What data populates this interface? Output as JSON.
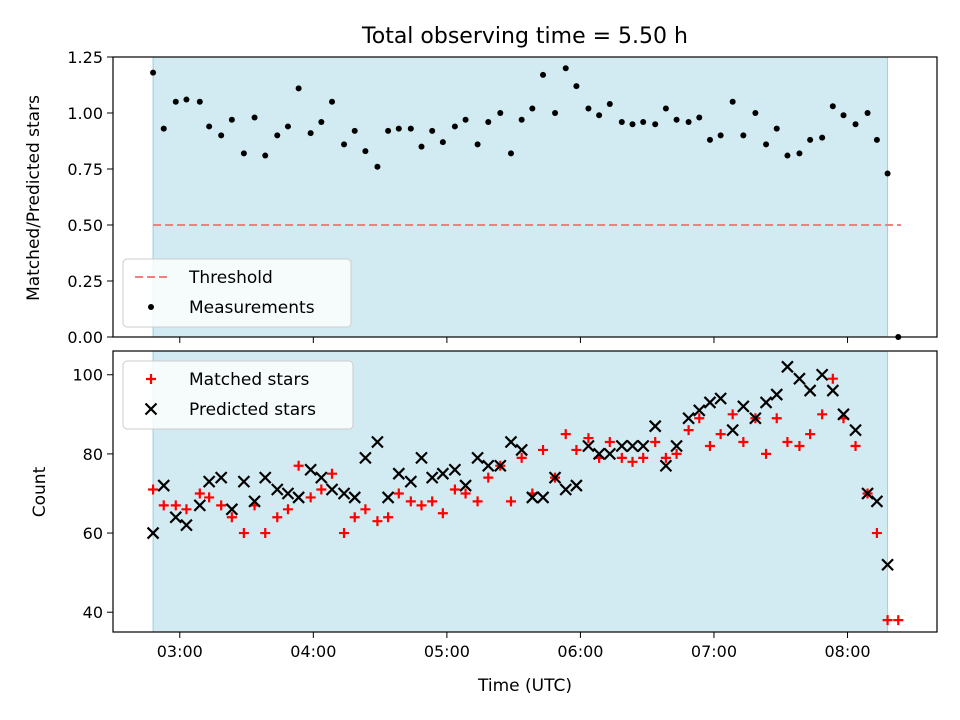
{
  "chart_data": [
    {
      "type": "scatter",
      "title": "Total observing time = 5.50 h",
      "xlabel": "",
      "ylabel": "Matched/Predicted stars",
      "ylim": [
        0,
        1.25
      ],
      "yticks": [
        "0.00",
        "0.25",
        "0.50",
        "0.75",
        "1.00",
        "1.25"
      ],
      "xlim": [
        2.5,
        8.67
      ],
      "xticks_hours": [
        3,
        4,
        5,
        6,
        7,
        8
      ],
      "shaded_span": [
        2.8,
        8.3
      ],
      "shade_color": "#add8e6",
      "legend": {
        "position": "lower-left",
        "entries": [
          {
            "label": "Threshold",
            "style": "dashed-line",
            "color": "#f08080"
          },
          {
            "label": "Measurements",
            "style": "dot",
            "color": "#000000"
          }
        ]
      },
      "threshold": {
        "name": "Threshold",
        "y": 0.5,
        "x": [
          2.8,
          8.4
        ],
        "color": "#f08080"
      },
      "series": [
        {
          "name": "Measurements",
          "color": "#000000",
          "points": [
            [
              2.8,
              1.18
            ],
            [
              2.88,
              0.93
            ],
            [
              2.97,
              1.05
            ],
            [
              3.05,
              1.06
            ],
            [
              3.15,
              1.05
            ],
            [
              3.22,
              0.94
            ],
            [
              3.31,
              0.9
            ],
            [
              3.39,
              0.97
            ],
            [
              3.48,
              0.82
            ],
            [
              3.56,
              0.98
            ],
            [
              3.64,
              0.81
            ],
            [
              3.73,
              0.9
            ],
            [
              3.81,
              0.94
            ],
            [
              3.89,
              1.11
            ],
            [
              3.98,
              0.91
            ],
            [
              4.06,
              0.96
            ],
            [
              4.14,
              1.05
            ],
            [
              4.23,
              0.86
            ],
            [
              4.31,
              0.92
            ],
            [
              4.39,
              0.83
            ],
            [
              4.48,
              0.76
            ],
            [
              4.56,
              0.92
            ],
            [
              4.64,
              0.93
            ],
            [
              4.73,
              0.93
            ],
            [
              4.81,
              0.85
            ],
            [
              4.89,
              0.92
            ],
            [
              4.97,
              0.87
            ],
            [
              5.06,
              0.94
            ],
            [
              5.14,
              0.97
            ],
            [
              5.23,
              0.86
            ],
            [
              5.31,
              0.96
            ],
            [
              5.4,
              1.0
            ],
            [
              5.48,
              0.82
            ],
            [
              5.56,
              0.97
            ],
            [
              5.64,
              1.02
            ],
            [
              5.72,
              1.17
            ],
            [
              5.81,
              1.0
            ],
            [
              5.89,
              1.2
            ],
            [
              5.97,
              1.12
            ],
            [
              6.06,
              1.02
            ],
            [
              6.14,
              0.99
            ],
            [
              6.22,
              1.04
            ],
            [
              6.31,
              0.96
            ],
            [
              6.39,
              0.95
            ],
            [
              6.47,
              0.96
            ],
            [
              6.56,
              0.95
            ],
            [
              6.64,
              1.02
            ],
            [
              6.72,
              0.97
            ],
            [
              6.81,
              0.96
            ],
            [
              6.89,
              0.98
            ],
            [
              6.97,
              0.88
            ],
            [
              7.05,
              0.9
            ],
            [
              7.14,
              1.05
            ],
            [
              7.22,
              0.9
            ],
            [
              7.31,
              1.0
            ],
            [
              7.39,
              0.86
            ],
            [
              7.47,
              0.93
            ],
            [
              7.55,
              0.81
            ],
            [
              7.64,
              0.82
            ],
            [
              7.72,
              0.88
            ],
            [
              7.81,
              0.89
            ],
            [
              7.89,
              1.03
            ],
            [
              7.97,
              0.99
            ],
            [
              8.06,
              0.95
            ],
            [
              8.15,
              1.0
            ],
            [
              8.22,
              0.88
            ],
            [
              8.3,
              0.73
            ],
            [
              8.38,
              0.0
            ]
          ]
        }
      ]
    },
    {
      "type": "scatter",
      "title": "",
      "xlabel": "Time (UTC)",
      "ylabel": "Count",
      "ylim": [
        35,
        106
      ],
      "yticks": [
        "40",
        "60",
        "80",
        "100"
      ],
      "xlim": [
        2.5,
        8.67
      ],
      "xticks_hours": [
        3,
        4,
        5,
        6,
        7,
        8
      ],
      "xtick_labels": [
        "03:00",
        "04:00",
        "05:00",
        "06:00",
        "07:00",
        "08:00"
      ],
      "shaded_span": [
        2.8,
        8.3
      ],
      "shade_color": "#add8e6",
      "legend": {
        "position": "upper-left",
        "entries": [
          {
            "label": "Matched stars",
            "style": "plus",
            "color": "#ff0000"
          },
          {
            "label": "Predicted stars",
            "style": "cross",
            "color": "#000000"
          }
        ]
      },
      "series": [
        {
          "name": "Matched stars",
          "marker": "plus",
          "color": "#ff0000",
          "points": [
            [
              2.8,
              71
            ],
            [
              2.88,
              67
            ],
            [
              2.97,
              67
            ],
            [
              3.05,
              66
            ],
            [
              3.15,
              70
            ],
            [
              3.22,
              69
            ],
            [
              3.31,
              67
            ],
            [
              3.39,
              64
            ],
            [
              3.48,
              60
            ],
            [
              3.56,
              67
            ],
            [
              3.64,
              60
            ],
            [
              3.73,
              64
            ],
            [
              3.81,
              66
            ],
            [
              3.89,
              77
            ],
            [
              3.98,
              69
            ],
            [
              4.06,
              71
            ],
            [
              4.14,
              75
            ],
            [
              4.23,
              60
            ],
            [
              4.31,
              64
            ],
            [
              4.39,
              66
            ],
            [
              4.48,
              63
            ],
            [
              4.56,
              64
            ],
            [
              4.64,
              70
            ],
            [
              4.73,
              68
            ],
            [
              4.81,
              67
            ],
            [
              4.89,
              68
            ],
            [
              4.97,
              65
            ],
            [
              5.06,
              71
            ],
            [
              5.14,
              70
            ],
            [
              5.23,
              68
            ],
            [
              5.31,
              74
            ],
            [
              5.4,
              77
            ],
            [
              5.48,
              68
            ],
            [
              5.56,
              79
            ],
            [
              5.64,
              70
            ],
            [
              5.72,
              81
            ],
            [
              5.81,
              74
            ],
            [
              5.89,
              85
            ],
            [
              5.97,
              81
            ],
            [
              6.06,
              84
            ],
            [
              6.14,
              79
            ],
            [
              6.22,
              83
            ],
            [
              6.31,
              79
            ],
            [
              6.39,
              78
            ],
            [
              6.47,
              79
            ],
            [
              6.56,
              83
            ],
            [
              6.64,
              79
            ],
            [
              6.72,
              80
            ],
            [
              6.81,
              86
            ],
            [
              6.89,
              89
            ],
            [
              6.97,
              82
            ],
            [
              7.05,
              85
            ],
            [
              7.14,
              90
            ],
            [
              7.22,
              83
            ],
            [
              7.31,
              89
            ],
            [
              7.39,
              80
            ],
            [
              7.47,
              89
            ],
            [
              7.55,
              83
            ],
            [
              7.64,
              82
            ],
            [
              7.72,
              85
            ],
            [
              7.81,
              90
            ],
            [
              7.89,
              99
            ],
            [
              7.97,
              89
            ],
            [
              8.06,
              82
            ],
            [
              8.15,
              70
            ],
            [
              8.22,
              60
            ],
            [
              8.3,
              38
            ],
            [
              8.38,
              38
            ]
          ]
        },
        {
          "name": "Predicted stars",
          "marker": "cross",
          "color": "#000000",
          "points": [
            [
              2.8,
              60
            ],
            [
              2.88,
              72
            ],
            [
              2.97,
              64
            ],
            [
              3.05,
              62
            ],
            [
              3.15,
              67
            ],
            [
              3.22,
              73
            ],
            [
              3.31,
              74
            ],
            [
              3.39,
              66
            ],
            [
              3.48,
              73
            ],
            [
              3.56,
              68
            ],
            [
              3.64,
              74
            ],
            [
              3.73,
              71
            ],
            [
              3.81,
              70
            ],
            [
              3.89,
              69
            ],
            [
              3.98,
              76
            ],
            [
              4.06,
              74
            ],
            [
              4.14,
              71
            ],
            [
              4.23,
              70
            ],
            [
              4.31,
              69
            ],
            [
              4.39,
              79
            ],
            [
              4.48,
              83
            ],
            [
              4.56,
              69
            ],
            [
              4.64,
              75
            ],
            [
              4.73,
              73
            ],
            [
              4.81,
              79
            ],
            [
              4.89,
              74
            ],
            [
              4.97,
              75
            ],
            [
              5.06,
              76
            ],
            [
              5.14,
              72
            ],
            [
              5.23,
              79
            ],
            [
              5.31,
              77
            ],
            [
              5.4,
              77
            ],
            [
              5.48,
              83
            ],
            [
              5.56,
              81
            ],
            [
              5.64,
              69
            ],
            [
              5.72,
              69
            ],
            [
              5.81,
              74
            ],
            [
              5.89,
              71
            ],
            [
              5.97,
              72
            ],
            [
              6.06,
              82
            ],
            [
              6.14,
              80
            ],
            [
              6.22,
              80
            ],
            [
              6.31,
              82
            ],
            [
              6.39,
              82
            ],
            [
              6.47,
              82
            ],
            [
              6.56,
              87
            ],
            [
              6.64,
              77
            ],
            [
              6.72,
              82
            ],
            [
              6.81,
              89
            ],
            [
              6.89,
              91
            ],
            [
              6.97,
              93
            ],
            [
              7.05,
              94
            ],
            [
              7.14,
              86
            ],
            [
              7.22,
              92
            ],
            [
              7.31,
              89
            ],
            [
              7.39,
              93
            ],
            [
              7.47,
              95
            ],
            [
              7.55,
              102
            ],
            [
              7.64,
              99
            ],
            [
              7.72,
              96
            ],
            [
              7.81,
              100
            ],
            [
              7.89,
              96
            ],
            [
              7.97,
              90
            ],
            [
              8.06,
              86
            ],
            [
              8.15,
              70
            ],
            [
              8.22,
              68
            ],
            [
              8.3,
              52
            ]
          ]
        }
      ]
    }
  ]
}
